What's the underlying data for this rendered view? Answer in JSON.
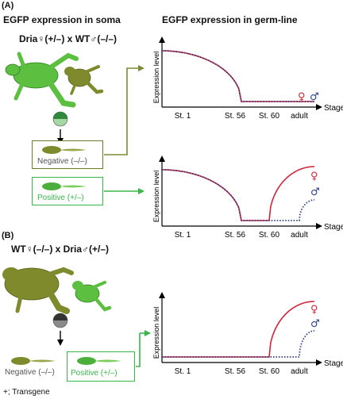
{
  "panels": {
    "a_label": "(A)",
    "b_label": "(B)"
  },
  "headers": {
    "soma": "EGFP expression in soma",
    "germline": "EGFP expression in germ-line"
  },
  "crosses": {
    "a": "Dria♀(+/–) x WT♂(–/–)",
    "b": "WT♀(–/–) x Dria♂(+/–)"
  },
  "offspring": {
    "negative": "Negative (–/–)",
    "positive": "Positive (+/–)"
  },
  "axes": {
    "ylabel": "Expression level",
    "xlabel": "Stage",
    "ticks": [
      "St. 1",
      "St. 56",
      "St. 60",
      "adult"
    ]
  },
  "sex_symbols": {
    "female": "♀",
    "male": "♂"
  },
  "footnote": "+; Transgene",
  "colors": {
    "female_line": "#d0243a",
    "male_line": "#2b3f86",
    "negative_box_border": "#6b7a2e",
    "positive_box_border": "#39b54a",
    "arrow_olive": "#7d8a37",
    "arrow_green": "#39b54a",
    "frog_green": "#5cbf3f",
    "frog_olive": "#7e8a2c"
  },
  "chart_data": [
    {
      "type": "line",
      "panel": "A-top",
      "title": "",
      "xlabel": "Stage",
      "ylabel": "Expression level",
      "x_ticks": [
        "St. 1",
        "St. 56",
        "St. 60",
        "adult"
      ],
      "series": [
        {
          "name": "♀",
          "style": "solid",
          "color": "#d0243a",
          "shape": "high until St. 1, decreasing to near zero by St. 56, flat through adult"
        },
        {
          "name": "♂",
          "style": "dotted",
          "color": "#2b3f86",
          "shape": "same as ♀"
        }
      ]
    },
    {
      "type": "line",
      "panel": "A-bottom",
      "title": "",
      "xlabel": "Stage",
      "ylabel": "Expression level",
      "x_ticks": [
        "St. 1",
        "St. 56",
        "St. 60",
        "adult"
      ],
      "series": [
        {
          "name": "♀",
          "style": "solid",
          "color": "#d0243a",
          "shape": "high, decreasing to zero at St. 56, rising steeply after St. 60 to high level"
        },
        {
          "name": "♂",
          "style": "dotted",
          "color": "#2b3f86",
          "shape": "high, decreasing to zero at St. 56, rising after adult to moderate level"
        }
      ]
    },
    {
      "type": "line",
      "panel": "B",
      "title": "",
      "xlabel": "Stage",
      "ylabel": "Expression level",
      "x_ticks": [
        "St. 1",
        "St. 56",
        "St. 60",
        "adult"
      ],
      "series": [
        {
          "name": "♀",
          "style": "solid",
          "color": "#d0243a",
          "shape": "zero until St. 60, rising steeply to high level"
        },
        {
          "name": "♂",
          "style": "dotted",
          "color": "#2b3f86",
          "shape": "zero until adult, rising to moderate level"
        }
      ]
    }
  ]
}
